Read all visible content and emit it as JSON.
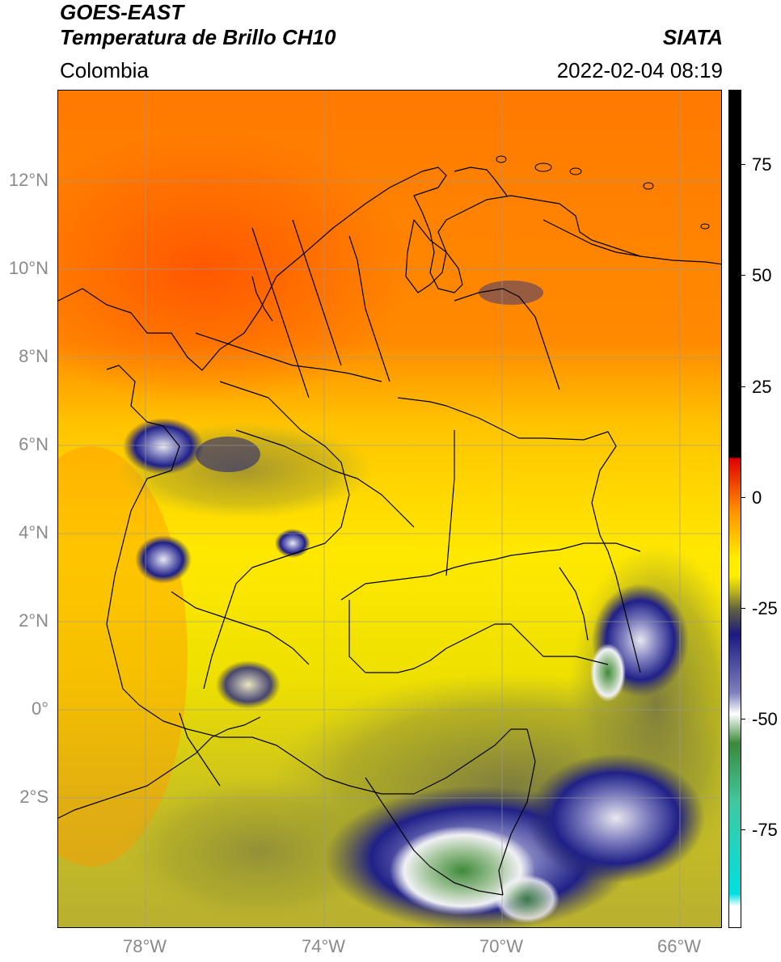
{
  "header": {
    "title_line1": "GOES-EAST",
    "title_line2": "Temperatura de Brillo CH10",
    "subtitle": "Colombia",
    "brand": "SIATA",
    "timestamp": "2022-02-04 08:19"
  },
  "map": {
    "lat_labels": [
      "12°N",
      "10°N",
      "8°N",
      "6°N",
      "4°N",
      "2°N",
      "0°",
      "2°S"
    ],
    "lon_labels": [
      "78°W",
      "74°W",
      "70°W",
      "66°W"
    ],
    "colors": {
      "warm_red": "#ff5a00",
      "orange": "#ff8c00",
      "yellow": "#ffe000",
      "olive": "#a8a82a",
      "dark_olive": "#6c6c44",
      "navy": "#1a1a80",
      "white": "#f4f4f4",
      "green": "#4a8a3a",
      "border": "#000000",
      "grid": "#9a9a9a"
    }
  },
  "colorbar": {
    "ticks": [
      "75",
      "50",
      "25",
      "0",
      "-25",
      "-50",
      "-75"
    ],
    "colors": [
      "#000000",
      "#e00000",
      "#ff8c00",
      "#ffee00",
      "#a0a020",
      "#606040",
      "#1a1a80",
      "#ffffff",
      "#3a8a3a",
      "#40c8a0",
      "#00e0e0",
      "#ffffff"
    ]
  }
}
